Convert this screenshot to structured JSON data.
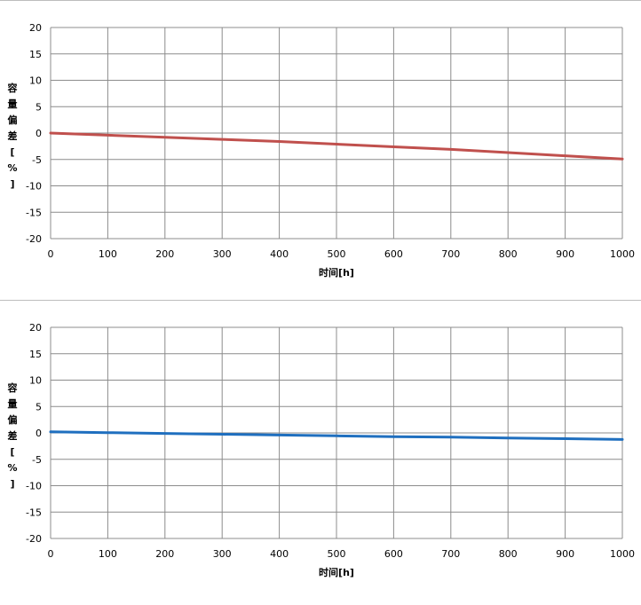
{
  "chart_data": [
    {
      "type": "line",
      "xlabel": "时间[h]",
      "ylabel": [
        "容",
        "量",
        "偏",
        "差",
        "[",
        "%",
        "]"
      ],
      "xlim": [
        0,
        1000
      ],
      "ylim": [
        -20,
        20
      ],
      "xticks": [
        0,
        100,
        200,
        300,
        400,
        500,
        600,
        700,
        800,
        900,
        1000
      ],
      "yticks": [
        20,
        15,
        10,
        5,
        0,
        -5,
        -10,
        -15,
        -20
      ],
      "grid": true,
      "line_color": "#c0504d",
      "series": [
        {
          "x": [
            0,
            100,
            200,
            300,
            400,
            500,
            600,
            700,
            800,
            900,
            1000
          ],
          "values": [
            0.0,
            -0.4,
            -0.8,
            -1.2,
            -1.6,
            -2.1,
            -2.6,
            -3.1,
            -3.7,
            -4.3,
            -4.9
          ]
        }
      ]
    },
    {
      "type": "line",
      "xlabel": "时间[h]",
      "ylabel": [
        "容",
        "量",
        "偏",
        "差",
        "[",
        "%",
        "]"
      ],
      "xlim": [
        0,
        1000
      ],
      "ylim": [
        -20,
        20
      ],
      "xticks": [
        0,
        100,
        200,
        300,
        400,
        500,
        600,
        700,
        800,
        900,
        1000
      ],
      "yticks": [
        20,
        15,
        10,
        5,
        0,
        -5,
        -10,
        -15,
        -20
      ],
      "grid": true,
      "line_color": "#1f6fbf",
      "series": [
        {
          "x": [
            0,
            100,
            200,
            300,
            400,
            500,
            600,
            700,
            800,
            900,
            1000
          ],
          "values": [
            0.2,
            0.05,
            -0.1,
            -0.25,
            -0.4,
            -0.55,
            -0.7,
            -0.8,
            -0.95,
            -1.1,
            -1.25
          ]
        }
      ]
    }
  ]
}
